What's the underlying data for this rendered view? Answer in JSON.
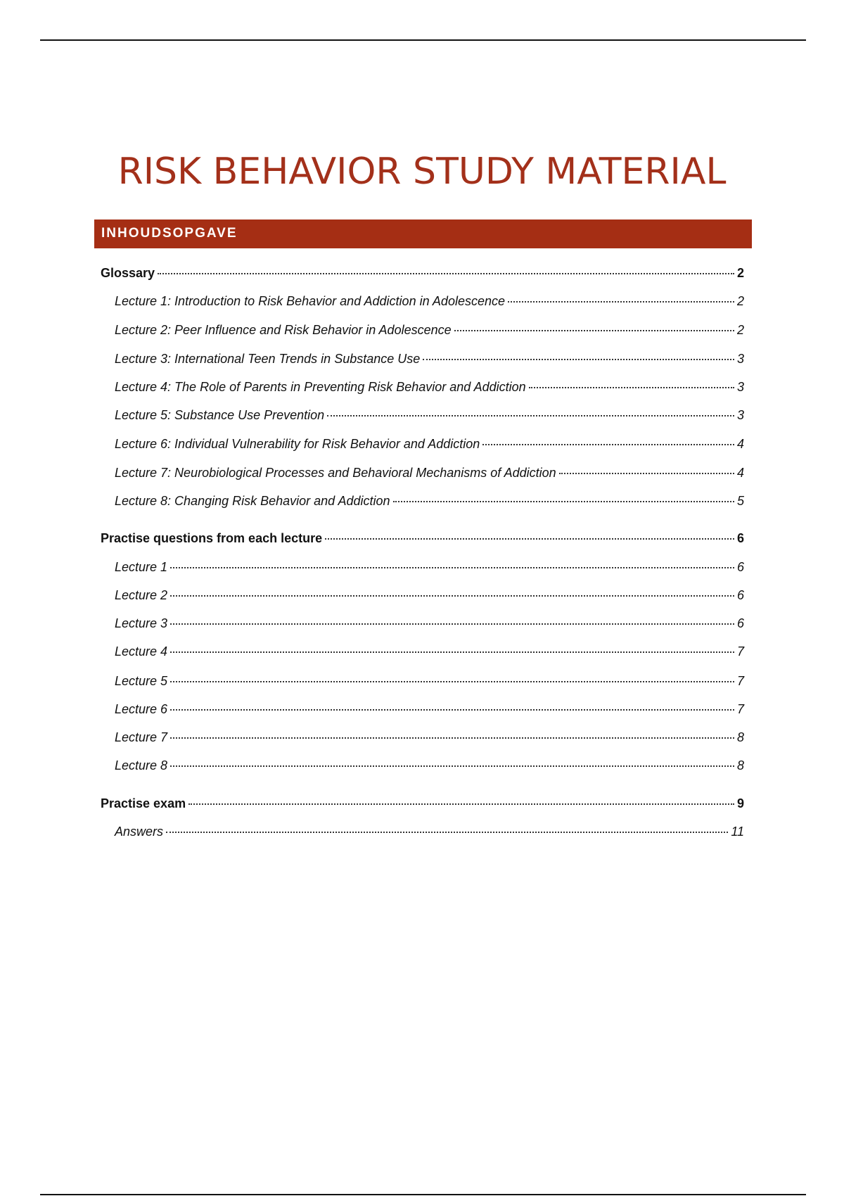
{
  "title": "RISK BEHAVIOR STUDY MATERIAL",
  "toc_header": "INHOUDSOPGAVE",
  "accent_color": "#a52e14",
  "toc": [
    {
      "level": 1,
      "label": "Glossary",
      "page": "2"
    },
    {
      "level": 2,
      "label": "Lecture 1: Introduction to Risk Behavior and Addiction in Adolescence",
      "page": "2"
    },
    {
      "level": 2,
      "label": "Lecture 2: Peer Influence and Risk Behavior in Adolescence",
      "page": "2"
    },
    {
      "level": 2,
      "label": "Lecture 3: International Teen Trends in Substance Use",
      "page": "3"
    },
    {
      "level": 2,
      "label": "Lecture 4: The Role of Parents in Preventing Risk Behavior and Addiction",
      "page": "3"
    },
    {
      "level": 2,
      "label": "Lecture 5: Substance Use Prevention",
      "page": "3"
    },
    {
      "level": 2,
      "label": "Lecture 6: Individual Vulnerability for Risk Behavior and Addiction",
      "page": "4"
    },
    {
      "level": 2,
      "label": "Lecture 7: Neurobiological Processes and Behavioral Mechanisms of Addiction",
      "page": "4"
    },
    {
      "level": 2,
      "label": "Lecture 8: Changing Risk Behavior and Addiction",
      "page": "5"
    },
    {
      "level": 1,
      "label": "Practise questions from each lecture",
      "page": "6"
    },
    {
      "level": 2,
      "label": "Lecture 1",
      "page": "6"
    },
    {
      "level": 2,
      "label": "Lecture 2",
      "page": "6"
    },
    {
      "level": 2,
      "label": "Lecture 3",
      "page": "6"
    },
    {
      "level": 2,
      "label": "Lecture 4",
      "page": "7"
    },
    {
      "level": 2,
      "label": "Lecture 5",
      "page": "7"
    },
    {
      "level": 2,
      "label": "Lecture 6",
      "page": "7"
    },
    {
      "level": 2,
      "label": "Lecture 7",
      "page": "8"
    },
    {
      "level": 2,
      "label": "Lecture 8",
      "page": "8"
    },
    {
      "level": 1,
      "label": "Practise exam",
      "page": "9"
    },
    {
      "level": 2,
      "label": "Answers",
      "page": "11"
    }
  ]
}
